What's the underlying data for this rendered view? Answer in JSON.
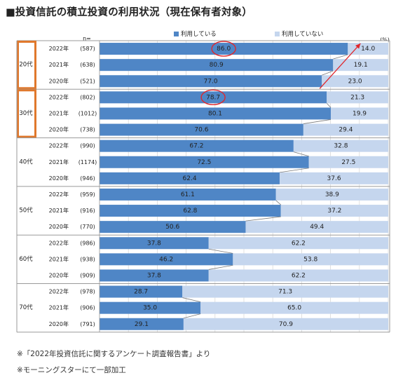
{
  "title": "■投資信託の積立投資の利用状況（現在保有者対象）",
  "notes": [
    "※「2022年投資信託に関するアンケート調査報告書」より",
    "※モーニングスターにて一部加工"
  ],
  "colors": {
    "using": "#4f86c6",
    "not_using": "#c5d6ee",
    "highlight_border": "#e0782c",
    "annotation": "#e0262b"
  },
  "chart_data": {
    "type": "bar",
    "stacked": true,
    "horizontal": true,
    "percent_unit": "(%)",
    "n_label": "n=",
    "legend": [
      "利用している",
      "利用していない"
    ],
    "legend_placement": "top",
    "xlim": [
      0,
      100
    ],
    "grid": true,
    "groups": [
      {
        "label": "20代",
        "highlighted": true,
        "rows": [
          {
            "year": "2022年",
            "n": "(587)",
            "using": 86.0,
            "not_using": 14.0,
            "circled": true
          },
          {
            "year": "2021年",
            "n": "(638)",
            "using": 80.9,
            "not_using": 19.1
          },
          {
            "year": "2020年",
            "n": "(521)",
            "using": 77.0,
            "not_using": 23.0
          }
        ]
      },
      {
        "label": "30代",
        "highlighted": true,
        "rows": [
          {
            "year": "2022年",
            "n": "(802)",
            "using": 78.7,
            "not_using": 21.3,
            "circled": true
          },
          {
            "year": "2021年",
            "n": "(1012)",
            "using": 80.1,
            "not_using": 19.9
          },
          {
            "year": "2020年",
            "n": "(738)",
            "using": 70.6,
            "not_using": 29.4
          }
        ]
      },
      {
        "label": "40代",
        "rows": [
          {
            "year": "2022年",
            "n": "(990)",
            "using": 67.2,
            "not_using": 32.8
          },
          {
            "year": "2021年",
            "n": "(1174)",
            "using": 72.5,
            "not_using": 27.5
          },
          {
            "year": "2020年",
            "n": "(946)",
            "using": 62.4,
            "not_using": 37.6
          }
        ]
      },
      {
        "label": "50代",
        "rows": [
          {
            "year": "2022年",
            "n": "(959)",
            "using": 61.1,
            "not_using": 38.9
          },
          {
            "year": "2021年",
            "n": "(916)",
            "using": 62.8,
            "not_using": 37.2
          },
          {
            "year": "2020年",
            "n": "(770)",
            "using": 50.6,
            "not_using": 49.4
          }
        ]
      },
      {
        "label": "60代",
        "rows": [
          {
            "year": "2022年",
            "n": "(986)",
            "using": 37.8,
            "not_using": 62.2
          },
          {
            "year": "2021年",
            "n": "(938)",
            "using": 46.2,
            "not_using": 53.8
          },
          {
            "year": "2020年",
            "n": "(909)",
            "using": 37.8,
            "not_using": 62.2
          }
        ]
      },
      {
        "label": "70代",
        "rows": [
          {
            "year": "2022年",
            "n": "(978)",
            "using": 28.7,
            "not_using": 71.3
          },
          {
            "year": "2021年",
            "n": "(906)",
            "using": 35.0,
            "not_using": 65.0
          },
          {
            "year": "2020年",
            "n": "(791)",
            "using": 29.1,
            "not_using": 70.9
          }
        ]
      }
    ],
    "annotations": [
      {
        "type": "arrow",
        "from": {
          "group": "30代",
          "row": "2022年"
        },
        "to": {
          "group": "20代",
          "row": "2022年"
        }
      }
    ]
  }
}
